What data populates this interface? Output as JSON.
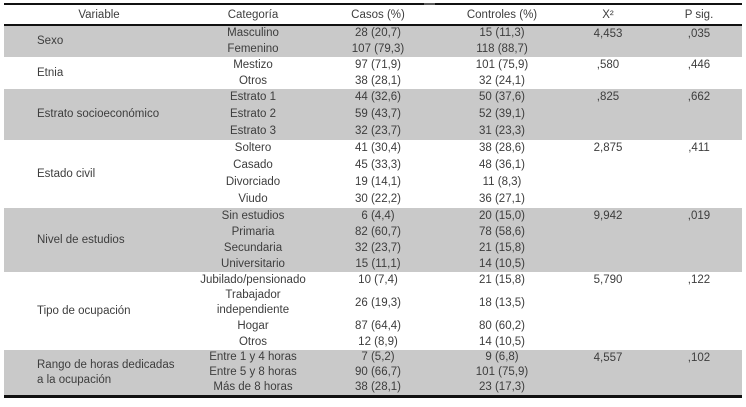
{
  "shading_color": "#c9c9c9",
  "border_color": "#111111",
  "text_color": "#3d3d3d",
  "table": {
    "columns": [
      "Variable",
      "Categoría",
      "Casos (%)",
      "Controles (%)",
      "X²",
      "P sig."
    ],
    "groups": [
      {
        "variable": "Sexo",
        "shaded": true,
        "x2": "4,453",
        "p": ",035",
        "rows": [
          {
            "categoria": "Masculino",
            "casos": "28 (20,7)",
            "controles": "15 (11,3)"
          },
          {
            "categoria": "Femenino",
            "casos": "107 (79,3)",
            "controles": "118 (88,7)"
          }
        ]
      },
      {
        "variable": "Etnia",
        "shaded": false,
        "x2": ",580",
        "p": ",446",
        "rows": [
          {
            "categoria": "Mestizo",
            "casos": "97 (71,9)",
            "controles": "101 (75,9)"
          },
          {
            "categoria": "Otros",
            "casos": "38 (28,1)",
            "controles": "32 (24,1)"
          }
        ]
      },
      {
        "variable": "Estrato socioeconómico",
        "shaded": true,
        "x2": ",825",
        "p": ",662",
        "rows": [
          {
            "categoria": "Estrato 1",
            "casos": "44 (32,6)",
            "controles": "50 (37,6)"
          },
          {
            "categoria": "Estrato 2",
            "casos": "59 (43,7)",
            "controles": "52 (39,1)"
          },
          {
            "categoria": "Estrato 3",
            "casos": "32 (23,7)",
            "controles": "31 (23,3)"
          }
        ]
      },
      {
        "variable": "Estado civil",
        "shaded": false,
        "x2": "2,875",
        "p": ",411",
        "rows": [
          {
            "categoria": "Soltero",
            "casos": "41 (30,4)",
            "controles": "38 (28,6)"
          },
          {
            "categoria": "Casado",
            "casos": "45 (33,3)",
            "controles": "48 (36,1)"
          },
          {
            "categoria": "Divorciado",
            "casos": "19 (14,1)",
            "controles": "11 (8,3)"
          },
          {
            "categoria": "Viudo",
            "casos": "30 (22,2)",
            "controles": "36 (27,1)"
          }
        ]
      },
      {
        "variable": "Nivel de estudios",
        "shaded": true,
        "x2": "9,942",
        "p": ",019",
        "rows": [
          {
            "categoria": "Sin estudios",
            "casos": "6 (4,4)",
            "controles": "20 (15,0)"
          },
          {
            "categoria": "Primaria",
            "casos": "82 (60,7)",
            "controles": "78 (58,6)"
          },
          {
            "categoria": "Secundaria",
            "casos": "32 (23,7)",
            "controles": "21 (15,8)"
          },
          {
            "categoria": "Universitario",
            "casos": "15 (11,1)",
            "controles": "14 (10,5)"
          }
        ]
      },
      {
        "variable": "Tipo de ocupación",
        "shaded": false,
        "x2": "5,790",
        "p": ",122",
        "rows": [
          {
            "categoria": "Jubilado/pensionado",
            "casos": "10 (7,4)",
            "controles": "21 (15,8)"
          },
          {
            "categoria": "Trabajador independiente",
            "casos": "26 (19,3)",
            "controles": "18 (13,5)"
          },
          {
            "categoria": "Hogar",
            "casos": "87 (64,4)",
            "controles": "80 (60,2)"
          },
          {
            "categoria": "Otros",
            "casos": "12 (8,9)",
            "controles": "14 (10,5)"
          }
        ]
      },
      {
        "variable": "Rango de horas dedicadas a la ocupación",
        "shaded": true,
        "x2": "4,557",
        "p": ",102",
        "rows": [
          {
            "categoria": "Entre 1 y 4 horas",
            "casos": "7 (5,2)",
            "controles": "9 (6,8)"
          },
          {
            "categoria": "Entre 5 y 8 horas",
            "casos": "90 (66,7)",
            "controles": "101 (75,9)"
          },
          {
            "categoria": "Más de 8 horas",
            "casos": "38 (28,1)",
            "controles": "23 (17,3)"
          }
        ]
      }
    ]
  }
}
